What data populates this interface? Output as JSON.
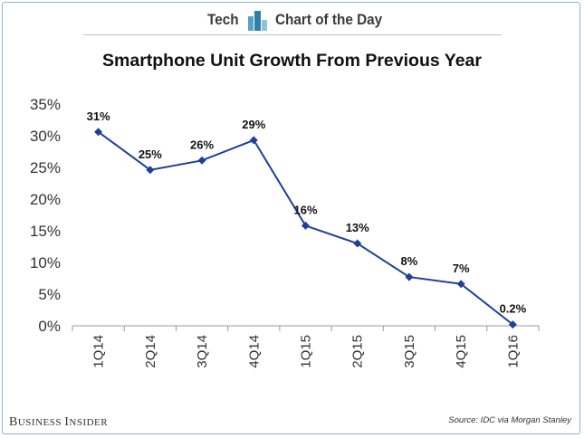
{
  "header": {
    "left_label": "Tech",
    "right_label": "Chart of the Day",
    "accent_color": "#5aa2c4",
    "icon": "bar-chart-icon"
  },
  "chart_data": {
    "type": "line",
    "title": "Smartphone Unit Growth From Previous Year",
    "xlabel": "",
    "ylabel": "",
    "categories": [
      "1Q14",
      "2Q14",
      "3Q14",
      "4Q14",
      "1Q15",
      "2Q15",
      "3Q15",
      "4Q15",
      "1Q16"
    ],
    "series": [
      {
        "name": "Smartphone Unit Growth",
        "values": [
          30.6,
          24.6,
          26.1,
          29.3,
          15.8,
          13.0,
          7.7,
          6.6,
          0.2
        ],
        "data_labels": [
          "31%",
          "25%",
          "26%",
          "29%",
          "16%",
          "13%",
          "8%",
          "7%",
          "0.2%"
        ],
        "color": "#1f3f99"
      }
    ],
    "ylim": [
      0,
      35
    ],
    "yticks": [
      0,
      5,
      10,
      15,
      20,
      25,
      30,
      35
    ],
    "ytick_labels": [
      "0%",
      "5%",
      "10%",
      "15%",
      "20%",
      "25%",
      "30%",
      "35%"
    ],
    "grid": false,
    "legend": "none"
  },
  "footer": {
    "brand_parts": [
      "B",
      "USINESS ",
      "I",
      "NSIDER"
    ],
    "source": "Source: IDC via Morgan Stanley"
  }
}
